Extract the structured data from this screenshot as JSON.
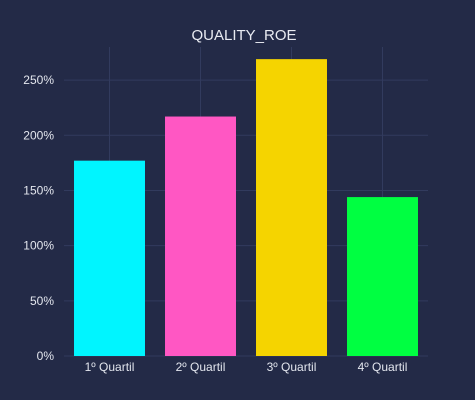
{
  "chart_data": {
    "type": "bar",
    "title": "QUALITY_ROE",
    "xlabel": "",
    "ylabel": "",
    "categories": [
      "1º Quartil",
      "2º Quartil",
      "3º Quartil",
      "4º Quartil"
    ],
    "values": [
      177,
      217,
      269,
      144
    ],
    "colors": [
      "#00f5ff",
      "#ff57c3",
      "#f5d400",
      "#00ff41"
    ],
    "ylim": [
      0,
      280
    ],
    "yticks": [
      0,
      50,
      100,
      150,
      200,
      250
    ],
    "ytick_labels": [
      "0%",
      "50%",
      "100%",
      "150%",
      "200%",
      "250%"
    ],
    "grid": true,
    "background": "#232a47"
  }
}
